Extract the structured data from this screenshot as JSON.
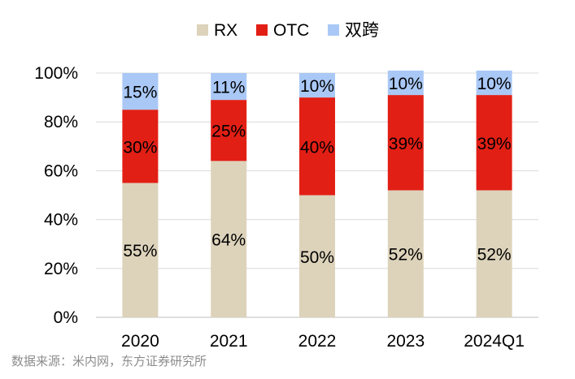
{
  "chart_data": {
    "type": "bar",
    "stacked": true,
    "percent_stacked": true,
    "categories": [
      "2020",
      "2021",
      "2022",
      "2023",
      "2024Q1"
    ],
    "series": [
      {
        "name": "RX",
        "color": "#ddd3bb",
        "values": [
          55,
          64,
          50,
          52,
          52
        ],
        "labels": [
          "55%",
          "64%",
          "50%",
          "52%",
          "52%"
        ]
      },
      {
        "name": "OTC",
        "color": "#e21f15",
        "values": [
          30,
          25,
          40,
          39,
          39
        ],
        "labels": [
          "30%",
          "25%",
          "40%",
          "39%",
          "39%"
        ]
      },
      {
        "name": "双跨",
        "color": "#a9c8f6",
        "values": [
          15,
          11,
          10,
          10,
          10
        ],
        "labels": [
          "15%",
          "11%",
          "10%",
          "10%",
          "10%"
        ]
      }
    ],
    "ylim": [
      0,
      100
    ],
    "yticks": [
      0,
      20,
      40,
      60,
      80,
      100
    ],
    "ytick_labels": [
      "0%",
      "20%",
      "40%",
      "60%",
      "80%",
      "100%"
    ],
    "grid": true,
    "legend_position": "top-center"
  },
  "source_note": "数据来源：米内网，东方证券研究所"
}
